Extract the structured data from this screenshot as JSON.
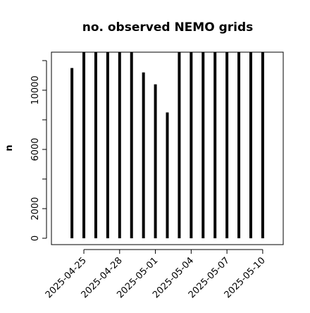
{
  "chart_data": {
    "type": "histogram-lines",
    "title": "no. observed NEMO grids",
    "y_label": "n",
    "x": [
      "2025-04-24",
      "2025-04-25",
      "2025-04-26",
      "2025-04-27",
      "2025-04-28",
      "2025-04-29",
      "2025-04-30",
      "2025-05-01",
      "2025-05-02",
      "2025-05-03",
      "2025-05-04",
      "2025-05-05",
      "2025-05-06",
      "2025-05-07",
      "2025-05-08",
      "2025-05-09",
      "2025-05-10"
    ],
    "values": [
      11500,
      12600,
      12600,
      12600,
      12600,
      12600,
      11200,
      10400,
      8500,
      12600,
      12600,
      12600,
      12600,
      12600,
      12600,
      12600,
      12600
    ],
    "color": "#000000",
    "xlim": [
      "2025-04-22T06:43",
      "2025-05-11T17:17"
    ],
    "xticks": [
      "2025-04-25",
      "2025-04-28",
      "2025-05-01",
      "2025-05-04",
      "2025-05-07",
      "2025-05-10"
    ],
    "ylim": [
      -430,
      12570
    ],
    "yticks": [
      0,
      2000,
      {
        "value": 4000,
        "label": null
      },
      6000,
      {
        "value": 8000,
        "label": null
      },
      10000,
      {
        "value": 12000,
        "label": null
      }
    ]
  }
}
